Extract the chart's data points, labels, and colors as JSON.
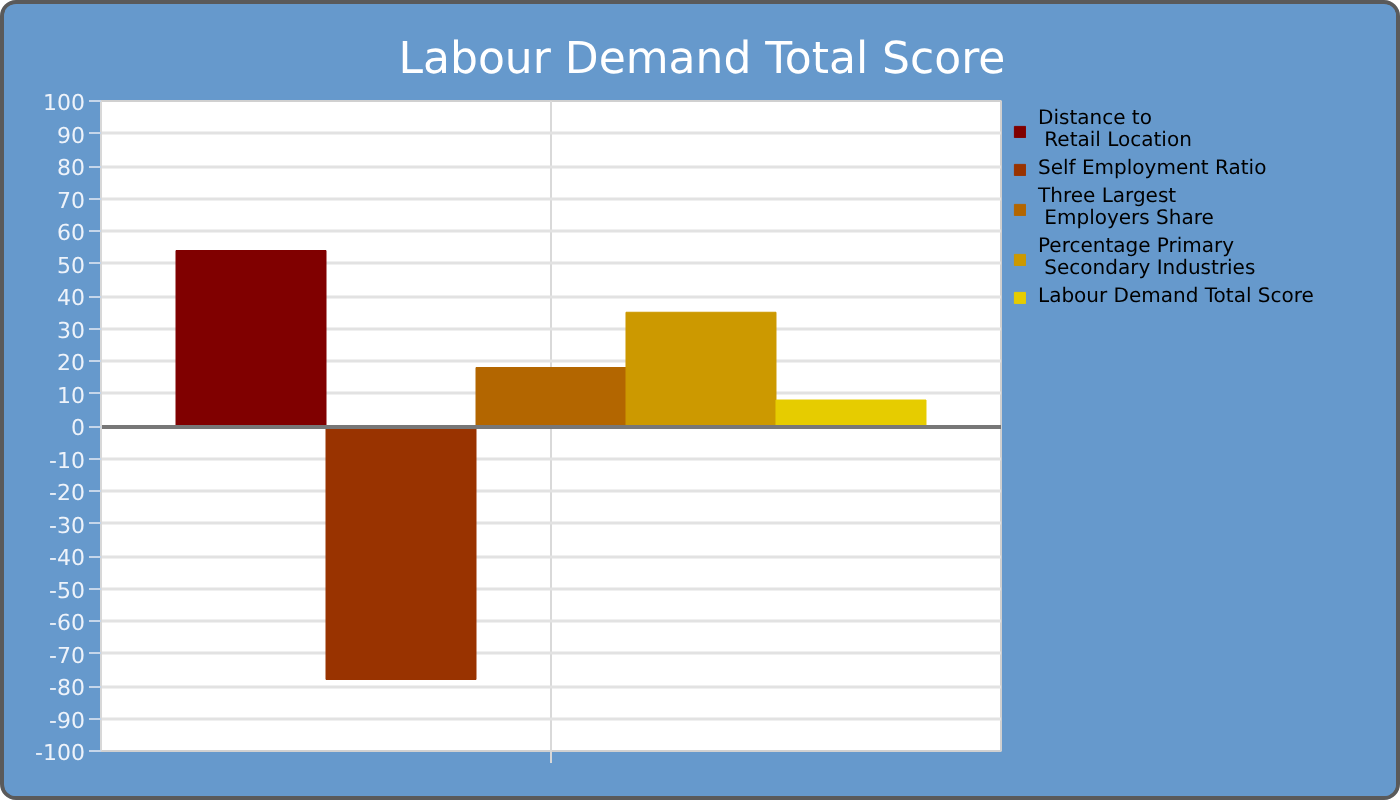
{
  "chart_data": {
    "type": "bar",
    "title": "Labour Demand Total Score",
    "categories": [
      null
    ],
    "series": [
      {
        "name": "Distance to Retail Location",
        "color": "#800000",
        "values": [
          54
        ]
      },
      {
        "name": "Self Employment Ratio",
        "color": "#993300",
        "values": [
          -78
        ]
      },
      {
        "name": "Three Largest Employers Share",
        "color": "#b36600",
        "values": [
          18
        ]
      },
      {
        "name": "Percentage Primary Secondary Industries",
        "color": "#cc9900",
        "values": [
          35
        ]
      },
      {
        "name": "Labour Demand Total Score",
        "color": "#e6cc00",
        "values": [
          8
        ]
      }
    ],
    "ylim": [
      -100,
      100
    ],
    "yticks": [
      -100,
      -90,
      -80,
      -70,
      -60,
      -50,
      -40,
      -30,
      -20,
      -10,
      0,
      10,
      20,
      30,
      40,
      50,
      60,
      70,
      80,
      90,
      100
    ],
    "grid": true,
    "legend": "right",
    "tick_labels": "y"
  }
}
